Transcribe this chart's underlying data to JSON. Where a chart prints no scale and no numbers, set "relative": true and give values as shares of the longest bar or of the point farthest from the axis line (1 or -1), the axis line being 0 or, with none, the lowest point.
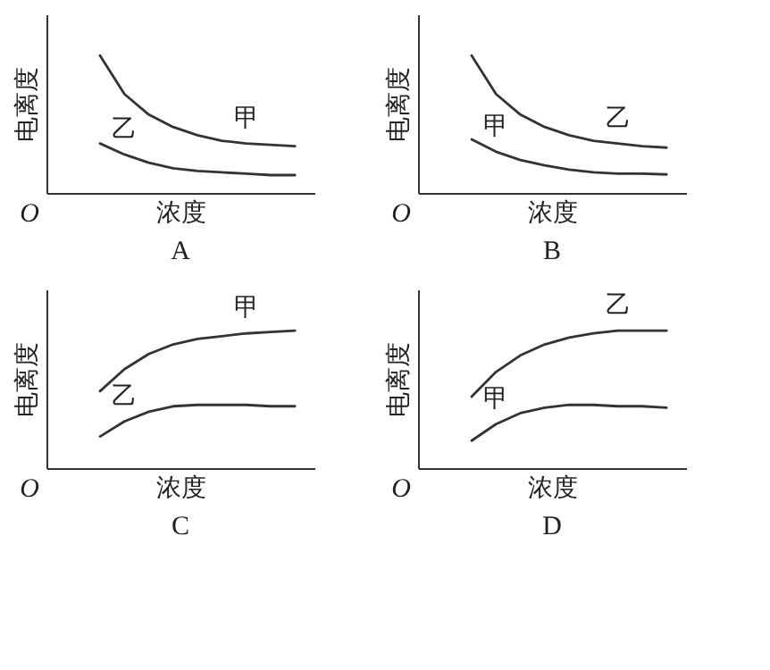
{
  "chart_data": [
    {
      "type": "line",
      "title": "A",
      "xlabel": "浓度",
      "ylabel": "电离度",
      "relative": true,
      "annotations": [
        "O"
      ],
      "marker": "none",
      "line_style": "solid",
      "tick_labels": false,
      "categories": [
        null,
        null,
        null,
        null,
        null,
        null,
        null,
        null,
        null
      ],
      "series": [
        {
          "name": "甲",
          "color": "#333333",
          "values": [
            1,
            0.72,
            0.57,
            0.48,
            0.42,
            0.38,
            0.36,
            0.35,
            0.34
          ]
        },
        {
          "name": "乙",
          "color": "#333333",
          "values": [
            0.36,
            0.28,
            0.22,
            0.18,
            0.16,
            0.15,
            0.14,
            0.13,
            0.13
          ]
        }
      ]
    },
    {
      "type": "line",
      "title": "B",
      "xlabel": "浓度",
      "ylabel": "电离度",
      "relative": true,
      "annotations": [
        "O"
      ],
      "marker": "none",
      "line_style": "solid",
      "tick_labels": false,
      "categories": [
        null,
        null,
        null,
        null,
        null,
        null,
        null,
        null,
        null
      ],
      "series": [
        {
          "name": "乙",
          "color": "#333333",
          "values": [
            1,
            0.72,
            0.57,
            0.48,
            0.42,
            0.38,
            0.36,
            0.34,
            0.33
          ]
        },
        {
          "name": "甲",
          "color": "#333333",
          "values": [
            0.39,
            0.3,
            0.24,
            0.2,
            0.17,
            0.15,
            0.14,
            0.14,
            0.135
          ]
        }
      ]
    },
    {
      "type": "line",
      "title": "C",
      "xlabel": "浓度",
      "ylabel": "电离度",
      "relative": true,
      "annotations": [
        "O"
      ],
      "marker": "none",
      "line_style": "solid",
      "tick_labels": false,
      "categories": [
        null,
        null,
        null,
        null,
        null,
        null,
        null,
        null,
        null
      ],
      "series": [
        {
          "name": "甲",
          "color": "#333333",
          "values": [
            0.56,
            0.72,
            0.83,
            0.9,
            0.94,
            0.96,
            0.98,
            0.99,
            1
          ]
        },
        {
          "name": "乙",
          "color": "#333333",
          "values": [
            0.23,
            0.34,
            0.41,
            0.45,
            0.46,
            0.46,
            0.46,
            0.45,
            0.45
          ]
        }
      ]
    },
    {
      "type": "line",
      "title": "D",
      "xlabel": "浓度",
      "ylabel": "电离度",
      "relative": true,
      "annotations": [
        "O"
      ],
      "marker": "none",
      "line_style": "solid",
      "tick_labels": false,
      "categories": [
        null,
        null,
        null,
        null,
        null,
        null,
        null,
        null,
        null
      ],
      "series": [
        {
          "name": "乙",
          "color": "#333333",
          "values": [
            0.52,
            0.7,
            0.82,
            0.9,
            0.95,
            0.98,
            1,
            1,
            1
          ]
        },
        {
          "name": "甲",
          "color": "#333333",
          "values": [
            0.2,
            0.32,
            0.4,
            0.44,
            0.46,
            0.46,
            0.45,
            0.45,
            0.44
          ]
        }
      ]
    }
  ]
}
